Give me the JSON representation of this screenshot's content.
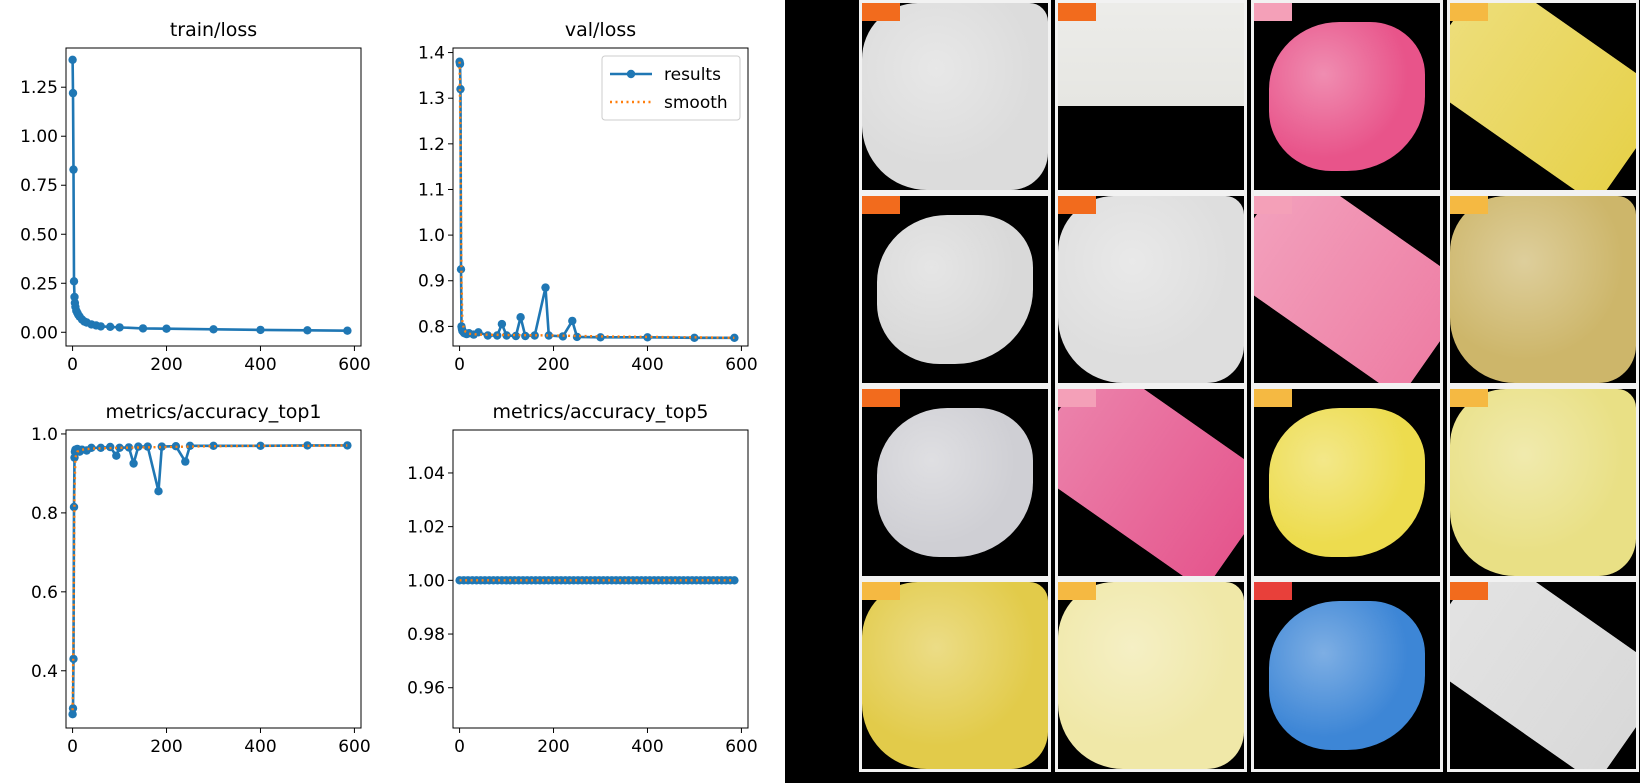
{
  "chart_data": [
    {
      "type": "line",
      "title": "train/loss",
      "xlim": [
        -14,
        614
      ],
      "ylim": [
        -0.07,
        1.45
      ],
      "xticks": [
        0,
        200,
        400,
        600
      ],
      "yticks": [
        0.0,
        0.25,
        0.5,
        0.75,
        1.0,
        1.25
      ],
      "ytick_labels": [
        "0.00",
        "0.25",
        "0.50",
        "0.75",
        "1.00",
        "1.25"
      ],
      "legend": null,
      "series": [
        {
          "name": "results",
          "x": [
            0,
            1,
            2,
            3,
            4,
            5,
            6,
            8,
            10,
            12,
            15,
            20,
            25,
            30,
            40,
            50,
            60,
            80,
            100,
            150,
            200,
            300,
            400,
            500,
            585
          ],
          "y": [
            1.39,
            1.22,
            0.83,
            0.26,
            0.18,
            0.15,
            0.13,
            0.11,
            0.1,
            0.09,
            0.08,
            0.065,
            0.055,
            0.05,
            0.04,
            0.035,
            0.03,
            0.028,
            0.025,
            0.02,
            0.018,
            0.015,
            0.012,
            0.01,
            0.008
          ]
        }
      ]
    },
    {
      "type": "line",
      "title": "val/loss",
      "xlim": [
        -14,
        614
      ],
      "ylim": [
        0.757,
        1.41
      ],
      "xticks": [
        0,
        200,
        400,
        600
      ],
      "yticks": [
        0.8,
        0.9,
        1.0,
        1.1,
        1.2,
        1.3,
        1.4
      ],
      "ytick_labels": [
        "0.8",
        "0.9",
        "1.0",
        "1.1",
        "1.2",
        "1.3",
        "1.4"
      ],
      "legend": {
        "placement": "upper-right",
        "entries": [
          "results",
          "smooth"
        ]
      },
      "series": [
        {
          "name": "results",
          "x": [
            0,
            1,
            2,
            3,
            4,
            5,
            6,
            8,
            10,
            15,
            20,
            30,
            40,
            60,
            80,
            90,
            100,
            120,
            130,
            140,
            160,
            183,
            190,
            220,
            240,
            250,
            300,
            400,
            500,
            585
          ],
          "y": [
            1.38,
            1.375,
            1.32,
            0.925,
            0.8,
            0.795,
            0.79,
            0.788,
            0.785,
            0.783,
            0.785,
            0.782,
            0.787,
            0.78,
            0.78,
            0.805,
            0.78,
            0.779,
            0.82,
            0.779,
            0.78,
            0.885,
            0.78,
            0.778,
            0.812,
            0.777,
            0.776,
            0.776,
            0.775,
            0.775
          ]
        },
        {
          "name": "smooth",
          "x": [
            0,
            2,
            4,
            6,
            10,
            20,
            40,
            100,
            200,
            300,
            400,
            500,
            585
          ],
          "y": [
            1.38,
            1.2,
            0.9,
            0.81,
            0.79,
            0.784,
            0.782,
            0.781,
            0.78,
            0.778,
            0.777,
            0.776,
            0.775
          ]
        }
      ]
    },
    {
      "type": "line",
      "title": "metrics/accuracy_top1",
      "xlim": [
        -14,
        614
      ],
      "ylim": [
        0.255,
        1.01
      ],
      "xticks": [
        0,
        200,
        400,
        600
      ],
      "yticks": [
        0.4,
        0.6,
        0.8,
        1.0
      ],
      "ytick_labels": [
        "0.4",
        "0.6",
        "0.8",
        "1.0"
      ],
      "legend": null,
      "series": [
        {
          "name": "results",
          "x": [
            0,
            1,
            2,
            3,
            4,
            5,
            6,
            8,
            10,
            15,
            20,
            30,
            40,
            60,
            80,
            93,
            100,
            120,
            130,
            140,
            160,
            183,
            190,
            220,
            240,
            250,
            300,
            400,
            500,
            585
          ],
          "y": [
            0.29,
            0.305,
            0.43,
            0.815,
            0.94,
            0.955,
            0.96,
            0.958,
            0.962,
            0.955,
            0.96,
            0.958,
            0.965,
            0.965,
            0.967,
            0.945,
            0.965,
            0.966,
            0.925,
            0.968,
            0.968,
            0.855,
            0.968,
            0.969,
            0.93,
            0.97,
            0.97,
            0.97,
            0.971,
            0.971
          ]
        },
        {
          "name": "smooth",
          "x": [
            0,
            2,
            4,
            6,
            10,
            20,
            40,
            100,
            200,
            300,
            400,
            500,
            585
          ],
          "y": [
            0.3,
            0.5,
            0.85,
            0.94,
            0.955,
            0.96,
            0.963,
            0.965,
            0.967,
            0.969,
            0.97,
            0.97,
            0.971
          ]
        }
      ]
    },
    {
      "type": "line",
      "title": "metrics/accuracy_top5",
      "xlim": [
        -14,
        614
      ],
      "ylim": [
        0.945,
        1.056
      ],
      "xticks": [
        0,
        200,
        400,
        600
      ],
      "yticks": [
        0.96,
        0.98,
        1.0,
        1.02,
        1.04
      ],
      "ytick_labels": [
        "0.96",
        "0.98",
        "1.00",
        "1.02",
        "1.04"
      ],
      "legend": null,
      "series": [
        {
          "name": "results",
          "x_start": 0,
          "x_end": 585,
          "x_step": 9,
          "value": 1.0
        },
        {
          "name": "smooth",
          "x": [
            0,
            585
          ],
          "y": [
            1.0,
            1.0
          ]
        }
      ]
    }
  ],
  "colors": {
    "results": "#1f77b4",
    "smooth": "#ff7f0e"
  },
  "gallery": {
    "rows": 4,
    "cols": 4,
    "tiles": [
      {
        "color": "#dcdcdc",
        "shape": "full",
        "tag_color": "#f26b1d"
      },
      {
        "color": "#e6e6e2",
        "shape": "top-half",
        "tag_color": "#f26b1d"
      },
      {
        "color": "#e8548a",
        "shape": "blob",
        "tag_color": "#f4a0b8"
      },
      {
        "color": "#e7d24c",
        "shape": "diagonal",
        "tag_color": "#f5b942"
      },
      {
        "color": "#d9d9d9",
        "shape": "blob",
        "tag_color": "#f26b1d"
      },
      {
        "color": "#dedede",
        "shape": "full",
        "tag_color": "#f26b1d"
      },
      {
        "color": "#ee7fa5",
        "shape": "diagonal",
        "tag_color": "#f4a0b8"
      },
      {
        "color": "#cdb66a",
        "shape": "full",
        "tag_color": "#f5b942"
      },
      {
        "color": "#cfcfd4",
        "shape": "blob",
        "tag_color": "#f26b1d"
      },
      {
        "color": "#e5578e",
        "shape": "diagonal",
        "tag_color": "#f4a0b8"
      },
      {
        "color": "#eddc4e",
        "shape": "blob",
        "tag_color": "#f5b942"
      },
      {
        "color": "#e9e085",
        "shape": "full",
        "tag_color": "#f5b942"
      },
      {
        "color": "#e2cb4a",
        "shape": "full",
        "tag_color": "#f5b942"
      },
      {
        "color": "#f0e8a8",
        "shape": "full",
        "tag_color": "#f5b942"
      },
      {
        "color": "#3d86d6",
        "shape": "blob",
        "tag_color": "#e8403a"
      },
      {
        "color": "#d9d9d9",
        "shape": "diagonal",
        "tag_color": "#f26b1d"
      }
    ]
  }
}
